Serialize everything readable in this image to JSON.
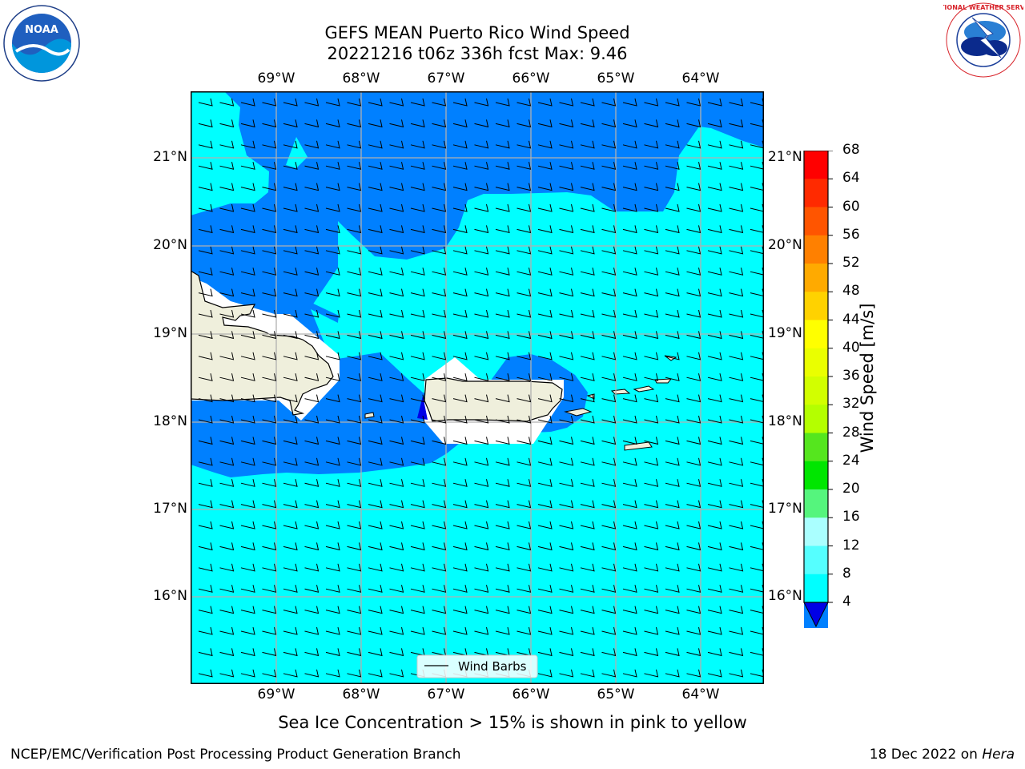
{
  "title": {
    "line1": "GEFS MEAN Puerto Rico Wind Speed",
    "line2": "20221216 t06z 336h fcst   Max: 9.46"
  },
  "lon_labels": [
    "69°W",
    "68°W",
    "67°W",
    "66°W",
    "65°W",
    "64°W"
  ],
  "lat_labels": [
    "21°N",
    "20°N",
    "19°N",
    "18°N",
    "17°N",
    "16°N"
  ],
  "legend": {
    "wind_barbs": "Wind Barbs"
  },
  "colorbar": {
    "label": "Wind Speed [m/s]",
    "ticks": [
      "68",
      "64",
      "60",
      "56",
      "52",
      "48",
      "44",
      "40",
      "36",
      "32",
      "28",
      "24",
      "20",
      "16",
      "12",
      "8",
      "4"
    ],
    "colors": [
      "#ff0000",
      "#ff2a00",
      "#ff5500",
      "#ff8000",
      "#ffaa00",
      "#ffd200",
      "#ffff00",
      "#eaff00",
      "#d2ff00",
      "#b4ff00",
      "#55e61e",
      "#00e600",
      "#55f57d",
      "#aaffff",
      "#55ffff",
      "#00ffff",
      "#0080ff"
    ],
    "extend_min_color": "#0000e6"
  },
  "caption": "Sea Ice Concentration > 15% is shown in pink to yellow",
  "footer": {
    "left": "NCEP/EMC/Verification Post Processing Product Generation Branch",
    "date": "18 Dec 2022 on ",
    "host": "Hera"
  },
  "logos": {
    "noaa": "NOAA",
    "nws": "NATIONAL WEATHER SERVICE"
  },
  "colors": {
    "wind_8_12": "#00ffff",
    "wind_4_8": "#0080ff",
    "wind_lt4": "#0000e6",
    "land": "#efefdc",
    "grid": "#b0b0b0"
  }
}
